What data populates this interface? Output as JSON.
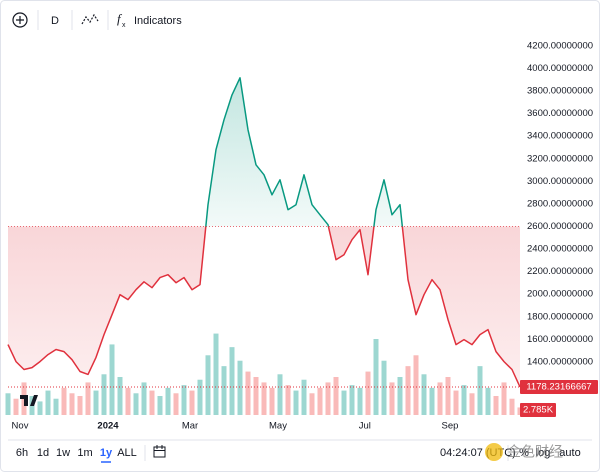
{
  "toolbar": {
    "interval": "D",
    "indicators": "Indicators"
  },
  "chart_data": {
    "type": "baseline",
    "values": [
      1554,
      1403,
      1333,
      1350,
      1403,
      1465,
      1510,
      1492,
      1420,
      1315,
      1290,
      1440,
      1642,
      1819,
      1996,
      1952,
      2040,
      2110,
      2058,
      2147,
      2173,
      2102,
      2147,
      2040,
      2085,
      2793,
      3280,
      3545,
      3766,
      3917,
      3457,
      3147,
      3058,
      2881,
      3014,
      2749,
      2793,
      3058,
      2793,
      2704,
      2616,
      2306,
      2350,
      2483,
      2572,
      2173,
      2749,
      3014,
      2704,
      2793,
      2129,
      1819,
      1996,
      2129,
      2040,
      1775,
      1554,
      1598,
      1554,
      1642,
      1687,
      1492,
      1403,
      1333,
      1178.23166667
    ],
    "baseline": 2600,
    "up_color": "#089981",
    "down_color": "#e0313d",
    "ylim": [
      930,
      4270
    ],
    "yticks": [
      {
        "value": 1400,
        "label": "1400.00000000"
      },
      {
        "value": 1600,
        "label": "1600.00000000"
      },
      {
        "value": 1800,
        "label": "1800.00000000"
      },
      {
        "value": 2000,
        "label": "2000.00000000"
      },
      {
        "value": 2200,
        "label": "2200.00000000"
      },
      {
        "value": 2400,
        "label": "2400.00000000"
      },
      {
        "value": 2600,
        "label": "2600.00000000"
      },
      {
        "value": 2800,
        "label": "2800.00000000"
      },
      {
        "value": 3000,
        "label": "3000.00000000"
      },
      {
        "value": 3200,
        "label": "3200.00000000"
      },
      {
        "value": 3400,
        "label": "3400.00000000"
      },
      {
        "value": 3600,
        "label": "3600.00000000"
      },
      {
        "value": 3800,
        "label": "3800.00000000"
      },
      {
        "value": 4000,
        "label": "4000.00000000"
      },
      {
        "value": 4200,
        "label": "4200.00000000"
      }
    ],
    "xlim": [
      0,
      64
    ],
    "xticks": [
      {
        "value": 1.5,
        "label": "Nov"
      },
      {
        "value": 12.5,
        "label": "2024"
      },
      {
        "value": 22.75,
        "label": "Mar"
      },
      {
        "value": 33.75,
        "label": "May"
      },
      {
        "value": 44.6,
        "label": "Jul"
      },
      {
        "value": 55.25,
        "label": "Sep"
      }
    ],
    "volume": {
      "values": [
        8,
        6,
        12,
        7,
        5,
        9,
        6,
        10,
        8,
        7,
        12,
        9,
        15,
        26,
        14,
        10,
        8,
        12,
        9,
        7,
        10,
        8,
        11,
        9,
        13,
        22,
        30,
        18,
        25,
        20,
        16,
        14,
        12,
        10,
        15,
        11,
        9,
        13,
        8,
        10,
        12,
        14,
        9,
        11,
        10,
        16,
        28,
        20,
        12,
        14,
        18,
        22,
        15,
        10,
        12,
        14,
        9,
        11,
        8,
        18,
        10,
        7,
        12,
        6,
        2.785
      ],
      "last_label": "2.785K",
      "lim": [
        0,
        35
      ]
    }
  },
  "footer": {
    "ranges": [
      "6h",
      "1d",
      "1w",
      "1m",
      "1y",
      "ALL"
    ],
    "selected": 4,
    "time": "04:24:07 (UTC)",
    "options": [
      "%",
      "log",
      "auto"
    ],
    "watermark": "金色财经"
  }
}
